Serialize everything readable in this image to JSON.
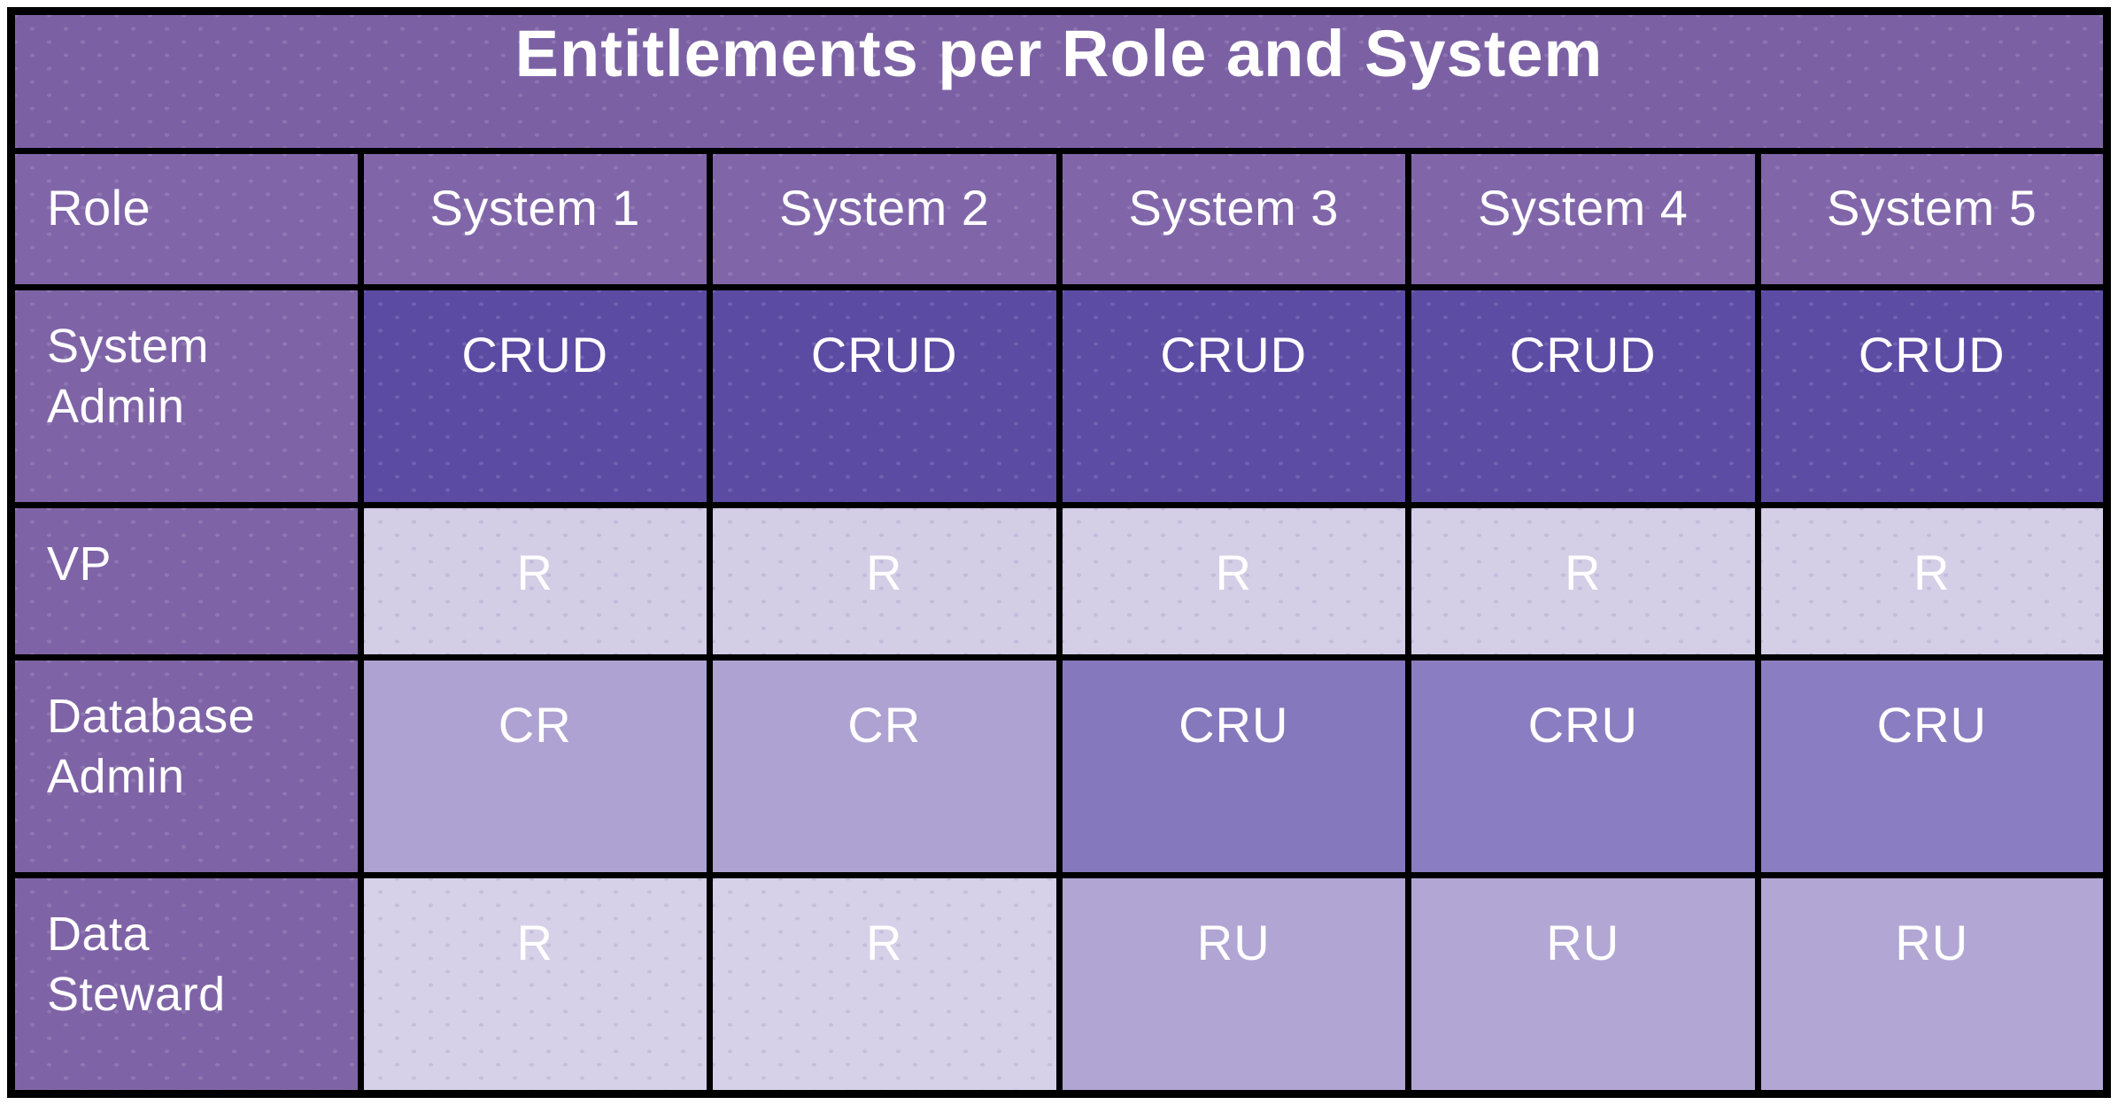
{
  "title": "Entitlements per Role and System",
  "columns": [
    "Role",
    "System 1",
    "System 2",
    "System 3",
    "System 4",
    "System 5"
  ],
  "rows": [
    {
      "role": "System Admin",
      "cells": [
        {
          "value": "CRUD",
          "color": "#5b4ba3"
        },
        {
          "value": "CRUD",
          "color": "#5b4ba3"
        },
        {
          "value": "CRUD",
          "color": "#5c4ca4"
        },
        {
          "value": "CRUD",
          "color": "#5c4ca4"
        },
        {
          "value": "CRUD",
          "color": "#5c4ca4"
        }
      ]
    },
    {
      "role": "VP",
      "cells": [
        {
          "value": "R",
          "color": "#d3cde6"
        },
        {
          "value": "R",
          "color": "#d3cde6"
        },
        {
          "value": "R",
          "color": "#d4cee7"
        },
        {
          "value": "R",
          "color": "#d4cee7"
        },
        {
          "value": "R",
          "color": "#d4cee7"
        }
      ]
    },
    {
      "role": "Database Admin",
      "cells": [
        {
          "value": "CR",
          "color": "#aea2d2"
        },
        {
          "value": "CR",
          "color": "#aea2d2"
        },
        {
          "value": "CRU",
          "color": "#8678bd"
        },
        {
          "value": "CRU",
          "color": "#8b7dc1"
        },
        {
          "value": "CRU",
          "color": "#8b7dc1"
        }
      ]
    },
    {
      "role": "Data Steward",
      "cells": [
        {
          "value": "R",
          "color": "#d6d1e8"
        },
        {
          "value": "R",
          "color": "#d6d1e8"
        },
        {
          "value": "RU",
          "color": "#b0a5d3"
        },
        {
          "value": "RU",
          "color": "#b2a7d4"
        },
        {
          "value": "RU",
          "color": "#b2a7d4"
        }
      ]
    }
  ],
  "colors": {
    "title_bg": "#7b61a4",
    "header_bg": "#8066a9",
    "label_bg": "#7e64a6",
    "border": "#000000",
    "text": "#ffffff",
    "page_bg": "#ffffff"
  }
}
